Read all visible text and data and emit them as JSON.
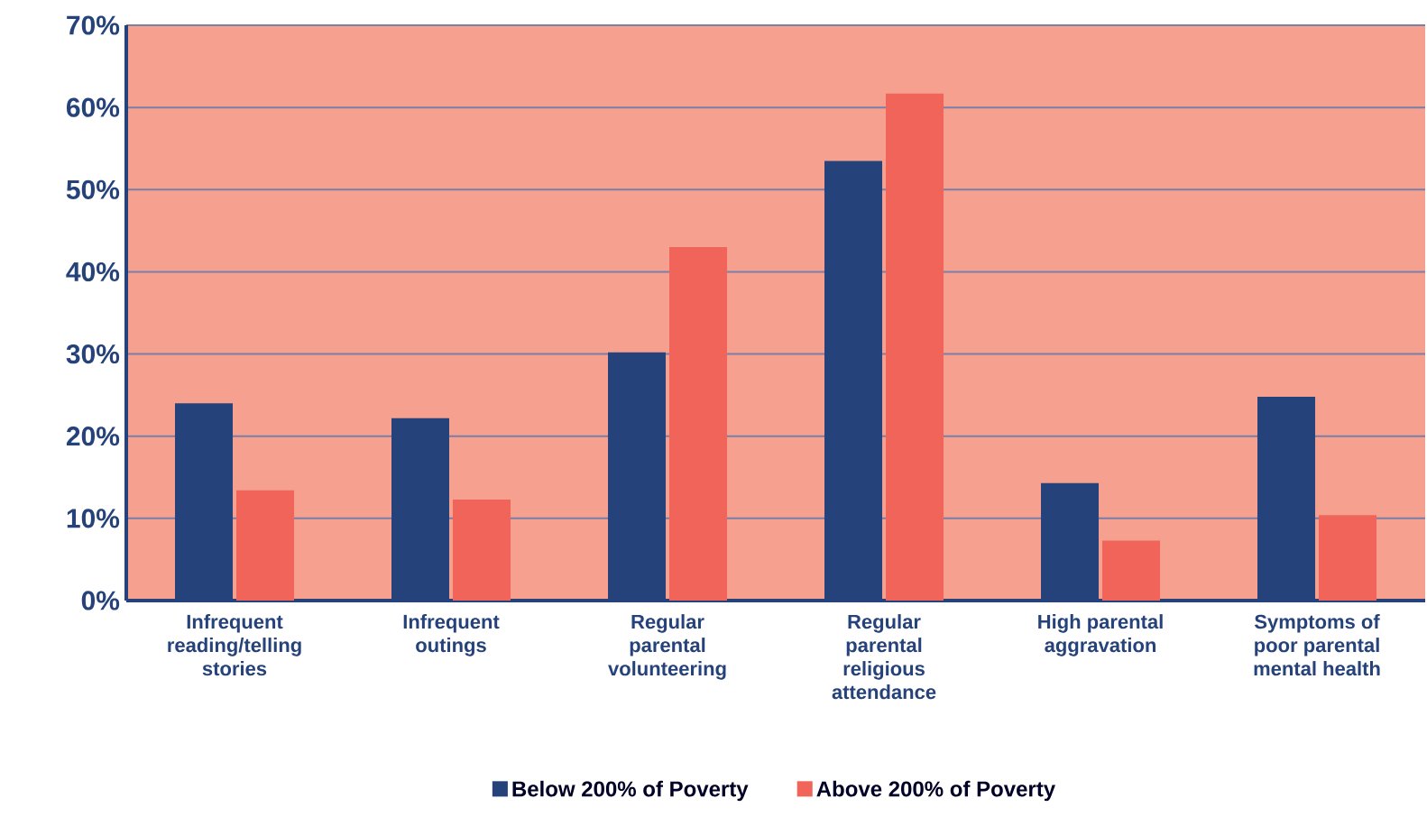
{
  "chart_data": {
    "type": "bar",
    "categories": [
      "Infrequent reading/telling stories",
      "Infrequent outings",
      "Regular parental volunteering",
      "Regular parental religious attendance",
      "High parental aggravation",
      "Symptoms of poor parental mental health"
    ],
    "series": [
      {
        "name": "Below 200% of Poverty",
        "color": "#26427a",
        "values": [
          24,
          22.2,
          30.2,
          53.5,
          14.3,
          24.8
        ]
      },
      {
        "name": "Above 200% of Poverty",
        "color": "#f0645a",
        "values": [
          13.4,
          12.3,
          43,
          61.7,
          7.3,
          10.4
        ]
      }
    ],
    "ylim": [
      0,
      70
    ],
    "yticks": [
      {
        "value": 0,
        "label": "0%"
      },
      {
        "value": 10,
        "label": "10%"
      },
      {
        "value": 20,
        "label": "20%"
      },
      {
        "value": 30,
        "label": "30%"
      },
      {
        "value": 40,
        "label": "40%"
      },
      {
        "value": 50,
        "label": "50%"
      },
      {
        "value": 60,
        "label": "60%"
      },
      {
        "value": 70,
        "label": "70%"
      }
    ],
    "grid": "y",
    "legend": "bottom"
  }
}
